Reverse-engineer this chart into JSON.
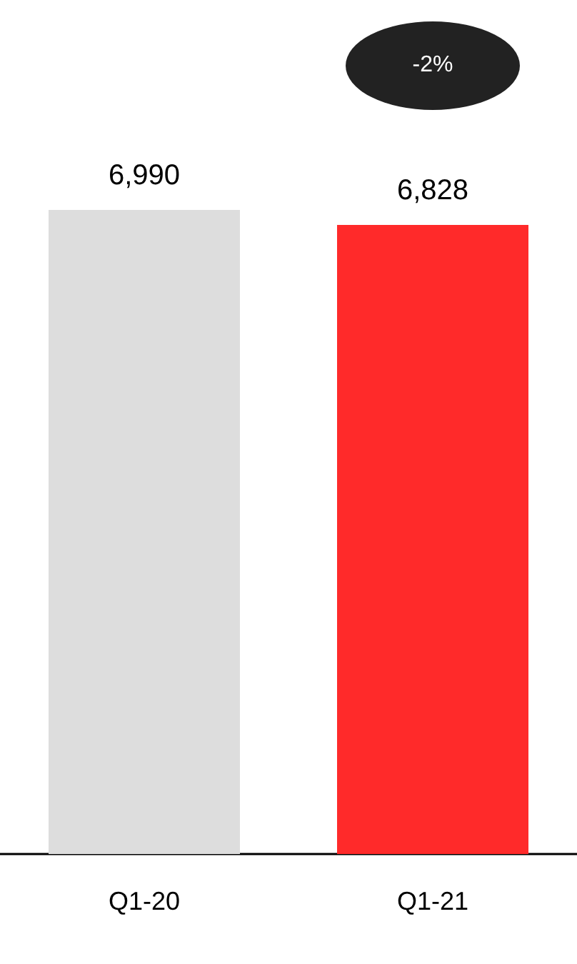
{
  "chart_data": {
    "type": "bar",
    "categories": [
      "Q1-20",
      "Q1-21"
    ],
    "values": [
      6990,
      6828
    ],
    "value_labels": [
      "6,990",
      "6,828"
    ],
    "colors": [
      "#dddddd",
      "#ff2a2a"
    ],
    "annotations": [
      "-2%"
    ]
  }
}
